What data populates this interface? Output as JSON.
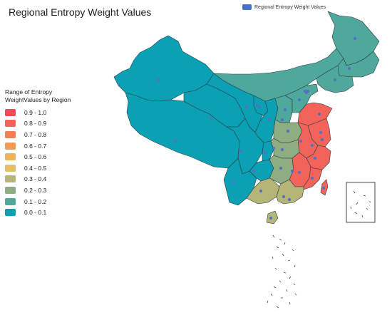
{
  "title": "Regional Entropy Weight Values",
  "series_legend": {
    "label": "Regional Entropy Weight Values",
    "color": "#4472c4"
  },
  "range_legend": {
    "title": "Range of Entropy WeightValues by Region",
    "items": [
      {
        "label": "0.9 - 1.0",
        "color": "#ef4b5a"
      },
      {
        "label": "0.8 - 0.9",
        "color": "#f2645a"
      },
      {
        "label": "0.7 - 0.8",
        "color": "#f37f55"
      },
      {
        "label": "0.6 - 0.7",
        "color": "#f39b55"
      },
      {
        "label": "0.5 - 0.6",
        "color": "#f0b35c"
      },
      {
        "label": "0.4 - 0.5",
        "color": "#e2bf68"
      },
      {
        "label": "0.3 - 0.4",
        "color": "#b6b578"
      },
      {
        "label": "0.2 - 0.3",
        "color": "#8fad83"
      },
      {
        "label": "0.1 - 0.2",
        "color": "#4fa89c"
      },
      {
        "label": "0.0 - 0.1",
        "color": "#0aa1b5"
      }
    ]
  },
  "map": {
    "marker_color": "#5470c6",
    "regions": [
      {
        "id": "xinjiang",
        "range": "0.0 - 0.1"
      },
      {
        "id": "tibet",
        "range": "0.0 - 0.1"
      },
      {
        "id": "qinghai",
        "range": "0.0 - 0.1"
      },
      {
        "id": "gansu",
        "range": "0.0 - 0.1"
      },
      {
        "id": "inner-mongolia",
        "range": "0.1 - 0.2"
      },
      {
        "id": "heilongjiang",
        "range": "0.1 - 0.2"
      },
      {
        "id": "jilin",
        "range": "0.1 - 0.2"
      },
      {
        "id": "liaoning",
        "range": "0.1 - 0.2"
      },
      {
        "id": "sichuan",
        "range": "0.0 - 0.1"
      },
      {
        "id": "yunnan",
        "range": "0.0 - 0.1"
      },
      {
        "id": "guizhou",
        "range": "0.0 - 0.1"
      },
      {
        "id": "chongqing",
        "range": "0.0 - 0.1"
      },
      {
        "id": "shaanxi",
        "range": "0.0 - 0.1"
      },
      {
        "id": "ningxia",
        "range": "0.0 - 0.1"
      },
      {
        "id": "shanxi",
        "range": "0.1 - 0.2"
      },
      {
        "id": "hebei",
        "range": "0.1 - 0.2"
      },
      {
        "id": "shandong",
        "range": "0.8 - 0.9"
      },
      {
        "id": "henan",
        "range": "0.2 - 0.3"
      },
      {
        "id": "jiangsu",
        "range": "0.8 - 0.9"
      },
      {
        "id": "anhui",
        "range": "0.8 - 0.9"
      },
      {
        "id": "hubei",
        "range": "0.2 - 0.3"
      },
      {
        "id": "hunan",
        "range": "0.2 - 0.3"
      },
      {
        "id": "jiangxi",
        "range": "0.8 - 0.9"
      },
      {
        "id": "zhejiang",
        "range": "0.8 - 0.9"
      },
      {
        "id": "fujian",
        "range": "0.8 - 0.9"
      },
      {
        "id": "guangdong",
        "range": "0.3 - 0.4"
      },
      {
        "id": "guangxi",
        "range": "0.3 - 0.4"
      },
      {
        "id": "hainan",
        "range": "0.3 - 0.4"
      },
      {
        "id": "taiwan",
        "range": "0.8 - 0.9"
      }
    ]
  }
}
